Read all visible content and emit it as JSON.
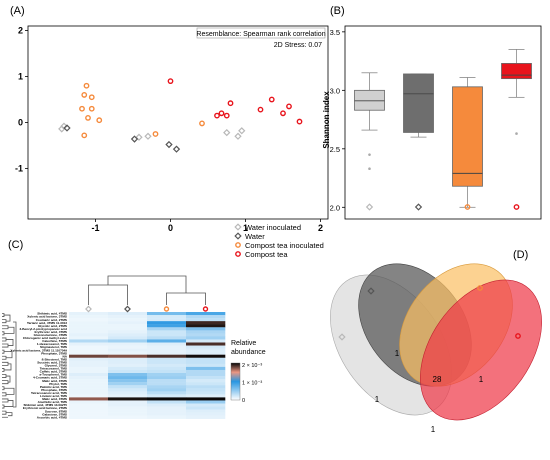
{
  "panels": {
    "a": "(A)",
    "b": "(B)",
    "c": "(C)",
    "d": "(D)"
  },
  "colors": {
    "water_inoculated": "#b8b8b8",
    "water": "#555555",
    "compost_tea_inoculated": "#f58a3c",
    "compost_tea": "#e8141c"
  },
  "chart_data": [
    {
      "type": "scatter",
      "panel": "A",
      "title": "Resemblance: Spearman rank correlation",
      "annotation": "2D Stress: 0.07",
      "xlim": [
        -1.9,
        2.1
      ],
      "ylim": [
        -2.1,
        2.1
      ],
      "x_ticks": [
        -1,
        0,
        1,
        2
      ],
      "y_ticks": [
        -1,
        0,
        1,
        2
      ],
      "series": [
        {
          "name": "Water inoculated",
          "marker": "diamond",
          "color": "#b8b8b8",
          "points": [
            [
              -1.42,
              -0.08
            ],
            [
              -1.45,
              -0.14
            ],
            [
              -0.42,
              -0.32
            ],
            [
              -0.3,
              -0.3
            ],
            [
              0.75,
              -0.22
            ],
            [
              0.9,
              -0.3
            ],
            [
              0.95,
              -0.18
            ]
          ]
        },
        {
          "name": "Water",
          "marker": "diamond",
          "color": "#555555",
          "points": [
            [
              -1.38,
              -0.12
            ],
            [
              -0.48,
              -0.36
            ],
            [
              0.08,
              -0.58
            ],
            [
              -0.02,
              -0.48
            ]
          ]
        },
        {
          "name": "Compost tea inoculated",
          "marker": "circle",
          "color": "#f58a3c",
          "points": [
            [
              -1.12,
              0.8
            ],
            [
              -1.15,
              0.6
            ],
            [
              -1.05,
              0.55
            ],
            [
              -1.18,
              0.3
            ],
            [
              -1.05,
              0.3
            ],
            [
              -1.1,
              0.1
            ],
            [
              -0.95,
              0.05
            ],
            [
              -1.15,
              -0.28
            ],
            [
              -0.2,
              -0.25
            ],
            [
              0.42,
              -0.02
            ]
          ]
        },
        {
          "name": "Compost tea",
          "marker": "circle",
          "color": "#e8141c",
          "points": [
            [
              0.0,
              0.9
            ],
            [
              0.62,
              0.15
            ],
            [
              0.68,
              0.2
            ],
            [
              0.75,
              0.15
            ],
            [
              0.8,
              0.42
            ],
            [
              1.2,
              0.28
            ],
            [
              1.35,
              0.5
            ],
            [
              1.5,
              0.2
            ],
            [
              1.58,
              0.35
            ],
            [
              1.72,
              0.02
            ]
          ]
        }
      ]
    },
    {
      "type": "box",
      "panel": "B",
      "ylabel": "Shannon index",
      "ylim": [
        1.9,
        3.55
      ],
      "y_ticks": [
        2.0,
        2.5,
        3.0,
        3.5
      ],
      "boxes": [
        {
          "name": "Water inoculated",
          "color": "#d0d0d0",
          "whisker_low": 2.66,
          "q1": 2.83,
          "median": 2.91,
          "q3": 3.0,
          "whisker_high": 3.15,
          "outliers": [
            2.45,
            2.33
          ]
        },
        {
          "name": "Water",
          "color": "#6e6e6e",
          "whisker_low": 2.6,
          "q1": 2.64,
          "median": 2.97,
          "q3": 3.14,
          "whisker_high": 3.14,
          "outliers": []
        },
        {
          "name": "Compost tea inoculated",
          "color": "#f58a3c",
          "whisker_low": 2.0,
          "q1": 2.18,
          "median": 2.29,
          "q3": 3.03,
          "whisker_high": 3.11,
          "outliers": []
        },
        {
          "name": "Compost tea",
          "color": "#e8141c",
          "whisker_low": 2.94,
          "q1": 3.1,
          "median": 3.13,
          "q3": 3.23,
          "whisker_high": 3.35,
          "outliers": [
            2.63
          ]
        }
      ]
    },
    {
      "type": "heatmap",
      "panel": "C",
      "columns": [
        "Water inoculated",
        "Water",
        "Compost tea inoculated",
        "Compost tea"
      ],
      "colorbar_label": "Relative abundance",
      "colorbar_ticks": [
        "2 × 10⁻³",
        "1 × 10⁻³",
        "0"
      ],
      "rows": [
        {
          "label": "Shikimic acid, 4TMS",
          "values": [
            0.06,
            0.08,
            0.32,
            0.42
          ]
        },
        {
          "label": "Xylonic acid lactone, 3TMS",
          "values": [
            0.05,
            0.06,
            0.1,
            0.18
          ]
        },
        {
          "label": "Coumaric acid, 2TMS",
          "values": [
            0.04,
            0.05,
            0.1,
            0.15
          ]
        },
        {
          "label": "Tartaric acid, 4TMS 11.3013",
          "values": [
            0.05,
            0.06,
            0.48,
            0.92
          ]
        },
        {
          "label": "Glycolic acid, 2TMS",
          "values": [
            0.05,
            0.05,
            0.45,
            0.96
          ]
        },
        {
          "label": "3-Benzyl-2-picolypropanoic acid",
          "values": [
            0.05,
            0.05,
            0.2,
            0.3
          ]
        },
        {
          "label": "Erythronic acid, 4TMS",
          "values": [
            0.05,
            0.06,
            0.12,
            0.2
          ]
        },
        {
          "label": "Gluconolactone, 4TMS",
          "values": [
            0.06,
            0.08,
            0.12,
            0.18
          ]
        },
        {
          "label": "Chlorogenic acid methyl ester",
          "values": [
            0.05,
            0.1,
            0.16,
            0.22
          ]
        },
        {
          "label": "Catechine, 5TMS",
          "values": [
            0.18,
            0.22,
            0.38,
            0.1
          ]
        },
        {
          "label": "1-Hexacosanol, TMS",
          "values": [
            0.06,
            0.06,
            0.08,
            0.9
          ]
        },
        {
          "label": "Stigmasterol, TMS",
          "values": [
            0.04,
            0.05,
            0.06,
            0.1
          ]
        },
        {
          "label": "Xylonic acid lactone, 3TMS 11.1107549",
          "values": [
            0.04,
            0.06,
            0.06,
            0.08
          ]
        },
        {
          "label": "Phosphate, 3TMS",
          "values": [
            0.04,
            0.05,
            0.06,
            0.08
          ]
        },
        {
          "label": "NA",
          "values": [
            0.85,
            0.82,
            0.9,
            0.98
          ]
        },
        {
          "label": "ß-Sitosterol, TMS",
          "values": [
            0.07,
            0.08,
            0.12,
            0.14
          ]
        },
        {
          "label": "Succinic acid, 2TMS",
          "values": [
            0.06,
            0.08,
            0.12,
            0.14
          ]
        },
        {
          "label": "Glycerol, 3TMS",
          "values": [
            0.06,
            0.07,
            0.1,
            0.12
          ]
        },
        {
          "label": "Tetracosanol, TMS",
          "values": [
            0.05,
            0.1,
            0.12,
            0.3
          ]
        },
        {
          "label": "Caffeic acid, 3TMS",
          "values": [
            0.05,
            0.12,
            0.14,
            0.18
          ]
        },
        {
          "label": "a-Tocopherol, TMS",
          "values": [
            0.08,
            0.3,
            0.22,
            0.18
          ]
        },
        {
          "label": "4-Coumaric acid, 2TMS",
          "values": [
            0.06,
            0.34,
            0.24,
            0.14
          ]
        },
        {
          "label": "Malic acid, 3TMS",
          "values": [
            0.05,
            0.28,
            0.16,
            0.1
          ]
        },
        {
          "label": "Phytol, TMS",
          "values": [
            0.05,
            0.22,
            0.16,
            0.12
          ]
        },
        {
          "label": "Palmitic acid, TMS",
          "values": [
            0.05,
            0.14,
            0.2,
            0.16
          ]
        },
        {
          "label": "Phosphate, 3TMS",
          "values": [
            0.05,
            0.1,
            0.22,
            0.14
          ]
        },
        {
          "label": "Tetracosanoic acid, TMS",
          "values": [
            0.05,
            0.08,
            0.16,
            0.12
          ]
        },
        {
          "label": "Linoleic acid, TMS",
          "values": [
            0.04,
            0.06,
            0.1,
            0.08
          ]
        },
        {
          "label": "Malic acid, 3TMS",
          "values": [
            0.8,
            0.97,
            0.99,
            0.99
          ]
        },
        {
          "label": "Arachidic acid, TMS",
          "values": [
            0.05,
            0.06,
            0.14,
            0.24
          ]
        },
        {
          "label": "Shikimic acid, 4TMS 13.09275",
          "values": [
            0.04,
            0.06,
            0.08,
            0.1
          ]
        },
        {
          "label": "Erythronic acid lactone, 2TMS",
          "values": [
            0.04,
            0.05,
            0.06,
            0.12
          ]
        },
        {
          "label": "Sucrose, 8TMS",
          "values": [
            0.04,
            0.05,
            0.06,
            0.08
          ]
        },
        {
          "label": "Galactose, 5TMS",
          "values": [
            0.04,
            0.05,
            0.06,
            0.07
          ]
        },
        {
          "label": "Ascorbic acid, 4TMS",
          "values": [
            0.04,
            0.04,
            0.05,
            0.06
          ]
        }
      ]
    },
    {
      "type": "venn",
      "panel": "D",
      "sets": [
        "Water inoculated",
        "Water",
        "Compost tea inoculated",
        "Compost tea"
      ],
      "region_counts": [
        {
          "label": "1"
        },
        {
          "label": "28"
        },
        {
          "label": "1"
        },
        {
          "label": "1"
        },
        {
          "label": "1"
        }
      ]
    }
  ],
  "legend": [
    {
      "label": "Water inoculated",
      "marker": "diamond",
      "color": "#b8b8b8"
    },
    {
      "label": "Water",
      "marker": "diamond",
      "color": "#555555"
    },
    {
      "label": "Compost tea inoculated",
      "marker": "circle",
      "color": "#f58a3c"
    },
    {
      "label": "Compost tea",
      "marker": "circle",
      "color": "#e8141c"
    }
  ]
}
